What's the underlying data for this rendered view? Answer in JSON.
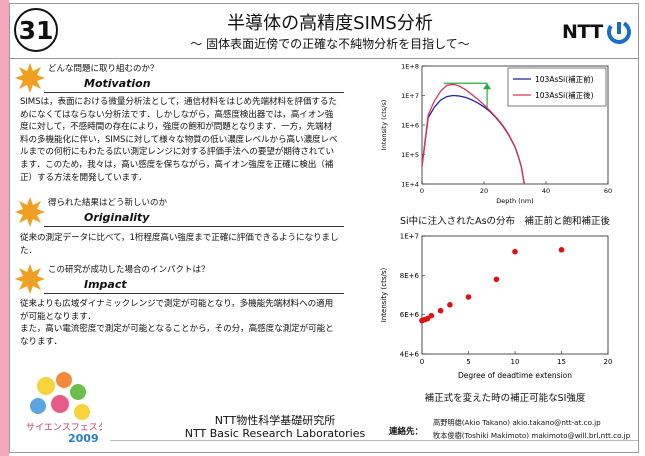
{
  "header": {
    "number": "31",
    "title": "半導体の高精度SIMS分析",
    "subtitle": "～ 固体表面近傍での正確な不純物分析を目指して～",
    "logo_text": "NTT"
  },
  "sections": [
    {
      "question": "どんな問題に取り組むのか？",
      "title": "Motivation",
      "text": "SIMSは，表面における微量分析法として，通信材料をはじめ先端材料を評価するためになくてはならない分析法です．しかしながら，高感度検出器では，高イオン強度に対して，不感時間の存在により，強度の飽和が問題となります．一方，先端材料の多機能化に伴い，SIMSに対して様々な物質の低い濃度レベルから高い濃度レベルまでの何桁にもわたる広い測定レンジに対する評価手法への要望が期待されています．このため，我々は，高い感度を保ちながら，高イオン強度を正確に検出（補正）する方法を開発しています．"
    },
    {
      "question": "得られた結果はどう新しいのか",
      "title": "Originality",
      "text": "従来の測定データに比べて，1桁程度高い強度まで正確に評価できるようになりました．"
    },
    {
      "question": "この研究が成功した場合のインパクトは？",
      "title": "Impact",
      "text": "従来よりも広域ダイナミックレンジで測定が可能となり，多機能先端材料への適用が可能となります．\nまた，高い電流密度で測定が可能となることから，その分，高感度な測定が可能となります．"
    }
  ],
  "chart_data": [
    {
      "type": "line",
      "xlabel": "Depth (nm)",
      "ylabel": "Intensity (cts/s)",
      "xlim": [
        0,
        60
      ],
      "ylim": [
        10000,
        100000000
      ],
      "yscale": "log",
      "x_ticks": [
        "0",
        "20",
        "40",
        "60"
      ],
      "y_ticks": [
        "1E+4",
        "1E+5",
        "1E+6",
        "1E+7",
        "1E+8"
      ],
      "legend_position": "top-right",
      "series": [
        {
          "name": "103AsSi(補正前)",
          "color": "#1f1fa8",
          "x": [
            0,
            2,
            4,
            6,
            8,
            10,
            12,
            14,
            16,
            18,
            20,
            22,
            24,
            26,
            28,
            30,
            31,
            32,
            33
          ],
          "y": [
            40000,
            1800000,
            4000000,
            7000000,
            9200000,
            10000000,
            9600000,
            8600000,
            7200000,
            5600000,
            4100000,
            2800000,
            1700000,
            950000,
            450000,
            180000,
            90000,
            40000,
            10000
          ]
        },
        {
          "name": "103AsSi(補正後)",
          "color": "#e0305a",
          "x": [
            0,
            2,
            4,
            6,
            8,
            10,
            12,
            14,
            16,
            18,
            20,
            22,
            24,
            26,
            28,
            30,
            31,
            32,
            33
          ],
          "y": [
            40000,
            2200000,
            6500000,
            14000000,
            22000000,
            24000000,
            21000000,
            16000000,
            11000000,
            7500000,
            4800000,
            3000000,
            1800000,
            1000000,
            470000,
            185000,
            92000,
            40000,
            10000
          ]
        }
      ],
      "caption": "Si中に注入されたAsの分布　補正前と飽和補正後"
    },
    {
      "type": "scatter",
      "xlabel": "Degree of deadtime extension",
      "ylabel": "Intensity (cts/s)",
      "xlim": [
        0,
        20
      ],
      "ylim": [
        4000000,
        10000000
      ],
      "x_ticks": [
        "0",
        "5",
        "10",
        "15",
        "20"
      ],
      "y_ticks": [
        "4E+6",
        "6E+6",
        "8E+6",
        "1E+7"
      ],
      "marker_color": "#e01010",
      "x": [
        0.0,
        0.3,
        0.6,
        1.0,
        2.0,
        3.0,
        5.0,
        8.0,
        10.0,
        15.0
      ],
      "y": [
        5700000,
        5750000,
        5800000,
        5950000,
        6200000,
        6500000,
        6900000,
        7800000,
        9200000,
        9300000
      ],
      "caption": "補正式を変えた時の補正可能なSI強度"
    }
  ],
  "festa_logo": {
    "lines": [
      "サイエンスフェスタ",
      "2009"
    ]
  },
  "footer": {
    "lab_jp": "NTT物性科学基礎研究所",
    "lab_en": "NTT Basic Research Laboratories",
    "contact_label": "連絡先：",
    "contacts": [
      "高野明雄(Akio Takano)  akio.takano@ntt-at.co.jp",
      "牧本俊樹(Toshiki Makimoto)  makimoto@will.brl.ntt.co.jp"
    ]
  }
}
